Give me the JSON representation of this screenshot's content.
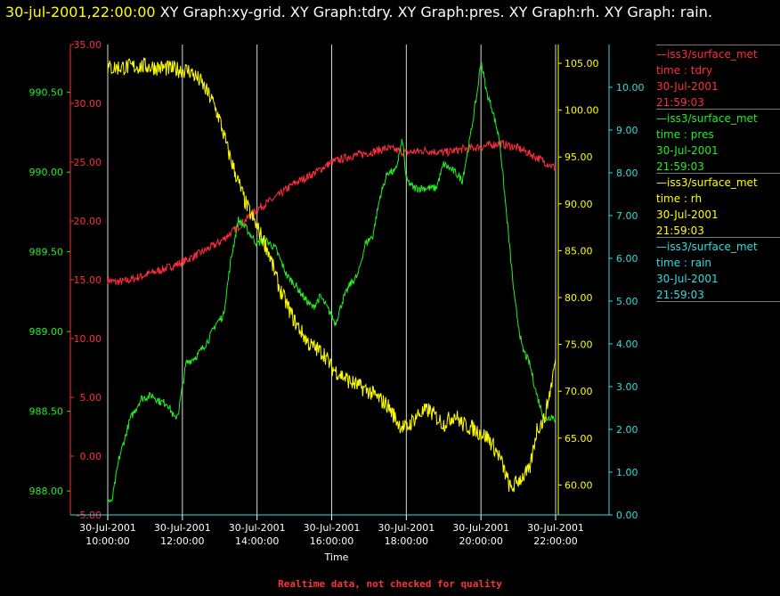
{
  "header": {
    "timestamp": "30-jul-2001,22:00:00",
    "graphs": "XY Graph:xy-grid.  XY Graph:tdry.  XY Graph:pres.  XY Graph:rh.  XY Graph: rain."
  },
  "footer": "Realtime data, not checked for quality",
  "chart_data": {
    "type": "line",
    "xlabel": "Time",
    "x_ticks": [
      [
        "30-Jul-2001",
        "10:00:00"
      ],
      [
        "30-Jul-2001",
        "12:00:00"
      ],
      [
        "30-Jul-2001",
        "14:00:00"
      ],
      [
        "30-Jul-2001",
        "16:00:00"
      ],
      [
        "30-Jul-2001",
        "18:00:00"
      ],
      [
        "30-Jul-2001",
        "20:00:00"
      ],
      [
        "30-Jul-2001",
        "22:00:00"
      ]
    ],
    "xlim": [
      10,
      22
    ],
    "grid": "vertical",
    "legend_position": "right",
    "axes": [
      {
        "id": "tdry",
        "color": "#ff2d3c",
        "ylim": [
          -5,
          35
        ],
        "ticks": [
          "-5.00",
          "0.00",
          "5.00",
          "10.00",
          "15.00",
          "20.00",
          "25.00",
          "30.00",
          "35.00"
        ]
      },
      {
        "id": "pres",
        "color": "#22ee22",
        "ylim": [
          987.85,
          990.8
        ],
        "ticks": [
          "988.00",
          "988.50",
          "989.00",
          "989.50",
          "990.00",
          "990.50"
        ]
      },
      {
        "id": "rh",
        "color": "#ffff00",
        "ylim": [
          56.8,
          107
        ],
        "ticks": [
          "60.00",
          "65.00",
          "70.00",
          "75.00",
          "80.00",
          "85.00",
          "90.00",
          "95.00",
          "100.00",
          "105.00"
        ]
      },
      {
        "id": "rain",
        "color": "#33dddd",
        "ylim": [
          0,
          11
        ],
        "ticks": [
          "0.00",
          "1.00",
          "2.00",
          "3.00",
          "4.00",
          "5.00",
          "6.00",
          "7.00",
          "8.00",
          "9.00",
          "10.00"
        ]
      }
    ],
    "series": [
      {
        "axis": "tdry",
        "color": "#ff2d3c",
        "legend": {
          "name": "iss3/surface_met",
          "var": "time : tdry",
          "date": "30-Jul-2001",
          "time": "21:59:03"
        },
        "points": [
          [
            10,
            15.0
          ],
          [
            10.2,
            14.8
          ],
          [
            10.5,
            14.9
          ],
          [
            11,
            15.4
          ],
          [
            11.5,
            15.9
          ],
          [
            12,
            16.5
          ],
          [
            12.5,
            17.3
          ],
          [
            13,
            18.2
          ],
          [
            13.5,
            19.5
          ],
          [
            14,
            21.0
          ],
          [
            14.5,
            22.0
          ],
          [
            15,
            23.2
          ],
          [
            15.5,
            24.0
          ],
          [
            16,
            25.0
          ],
          [
            16.5,
            25.5
          ],
          [
            17,
            25.8
          ],
          [
            17.5,
            26.2
          ],
          [
            18,
            25.8
          ],
          [
            18.5,
            26.0
          ],
          [
            19,
            25.8
          ],
          [
            19.5,
            26.1
          ],
          [
            20,
            26.3
          ],
          [
            20.5,
            26.6
          ],
          [
            21,
            26.2
          ],
          [
            21.5,
            25.4
          ],
          [
            22,
            24.5
          ]
        ]
      },
      {
        "axis": "pres",
        "color": "#22ee22",
        "legend": {
          "name": "iss3/surface_met",
          "var": "time : pres",
          "date": "30-Jul-2001",
          "time": "21:59:03"
        },
        "points": [
          [
            10,
            987.95
          ],
          [
            10.1,
            987.92
          ],
          [
            10.3,
            988.2
          ],
          [
            10.6,
            988.45
          ],
          [
            10.9,
            988.58
          ],
          [
            11.2,
            988.6
          ],
          [
            11.4,
            988.56
          ],
          [
            11.6,
            988.55
          ],
          [
            11.8,
            988.45
          ],
          [
            11.9,
            988.5
          ],
          [
            12.1,
            988.8
          ],
          [
            12.4,
            988.85
          ],
          [
            12.7,
            988.95
          ],
          [
            12.9,
            989.05
          ],
          [
            13.1,
            989.1
          ],
          [
            13.3,
            989.45
          ],
          [
            13.5,
            989.7
          ],
          [
            13.7,
            989.65
          ],
          [
            14.0,
            989.55
          ],
          [
            14.2,
            989.58
          ],
          [
            14.5,
            989.52
          ],
          [
            14.8,
            989.35
          ],
          [
            15.0,
            989.3
          ],
          [
            15.3,
            989.2
          ],
          [
            15.5,
            989.15
          ],
          [
            15.7,
            989.22
          ],
          [
            16.0,
            989.1
          ],
          [
            16.1,
            989.05
          ],
          [
            16.3,
            989.2
          ],
          [
            16.5,
            989.3
          ],
          [
            16.7,
            989.35
          ],
          [
            16.9,
            989.55
          ],
          [
            17.1,
            989.6
          ],
          [
            17.3,
            989.85
          ],
          [
            17.5,
            990.0
          ],
          [
            17.7,
            990.0
          ],
          [
            17.9,
            990.2
          ],
          [
            18.0,
            989.95
          ],
          [
            18.2,
            989.9
          ],
          [
            18.5,
            989.9
          ],
          [
            18.8,
            989.9
          ],
          [
            19.0,
            990.05
          ],
          [
            19.3,
            990.0
          ],
          [
            19.5,
            989.95
          ],
          [
            19.7,
            990.2
          ],
          [
            19.9,
            990.5
          ],
          [
            20.0,
            990.7
          ],
          [
            20.15,
            990.5
          ],
          [
            20.3,
            990.4
          ],
          [
            20.5,
            990.2
          ],
          [
            20.7,
            989.7
          ],
          [
            20.9,
            989.2
          ],
          [
            21.1,
            988.9
          ],
          [
            21.3,
            988.8
          ],
          [
            21.5,
            988.6
          ],
          [
            21.7,
            988.45
          ],
          [
            21.9,
            988.47
          ],
          [
            22,
            988.45
          ]
        ]
      },
      {
        "axis": "rh",
        "color": "#ffff00",
        "legend": {
          "name": "iss3/surface_met",
          "var": "time : rh",
          "date": "30-Jul-2001",
          "time": "21:59:03"
        },
        "points": [
          [
            10,
            104.5
          ],
          [
            10.5,
            104.6
          ],
          [
            11,
            104.7
          ],
          [
            11.5,
            104.5
          ],
          [
            12,
            104.3
          ],
          [
            12.2,
            104.2
          ],
          [
            12.5,
            103.0
          ],
          [
            12.8,
            101.0
          ],
          [
            13.0,
            99.0
          ],
          [
            13.2,
            96.0
          ],
          [
            13.4,
            93.5
          ],
          [
            13.7,
            90.0
          ],
          [
            14.0,
            87.5
          ],
          [
            14.3,
            85.0
          ],
          [
            14.6,
            81.0
          ],
          [
            15.0,
            77.5
          ],
          [
            15.4,
            75.0
          ],
          [
            15.8,
            74.0
          ],
          [
            16.0,
            72.5
          ],
          [
            16.5,
            71.0
          ],
          [
            17.0,
            70.0
          ],
          [
            17.5,
            68.5
          ],
          [
            17.8,
            66.5
          ],
          [
            18.0,
            66.0
          ],
          [
            18.3,
            67.5
          ],
          [
            18.6,
            68.0
          ],
          [
            19.0,
            66.5
          ],
          [
            19.3,
            67.5
          ],
          [
            19.5,
            66.5
          ],
          [
            19.8,
            66.0
          ],
          [
            20.2,
            65.0
          ],
          [
            20.5,
            63.0
          ],
          [
            20.8,
            59.5
          ],
          [
            21.0,
            60.5
          ],
          [
            21.3,
            61.5
          ],
          [
            21.5,
            66.0
          ],
          [
            21.7,
            67.0
          ],
          [
            21.9,
            71.0
          ],
          [
            22.0,
            73.5
          ]
        ]
      },
      {
        "axis": "rain",
        "color": "#33dddd",
        "legend": {
          "name": "iss3/surface_met",
          "var": "time : rain",
          "date": "30-Jul-2001",
          "time": "21:59:03"
        },
        "points": [
          [
            10,
            0.0
          ],
          [
            22,
            0.0
          ]
        ]
      }
    ]
  }
}
